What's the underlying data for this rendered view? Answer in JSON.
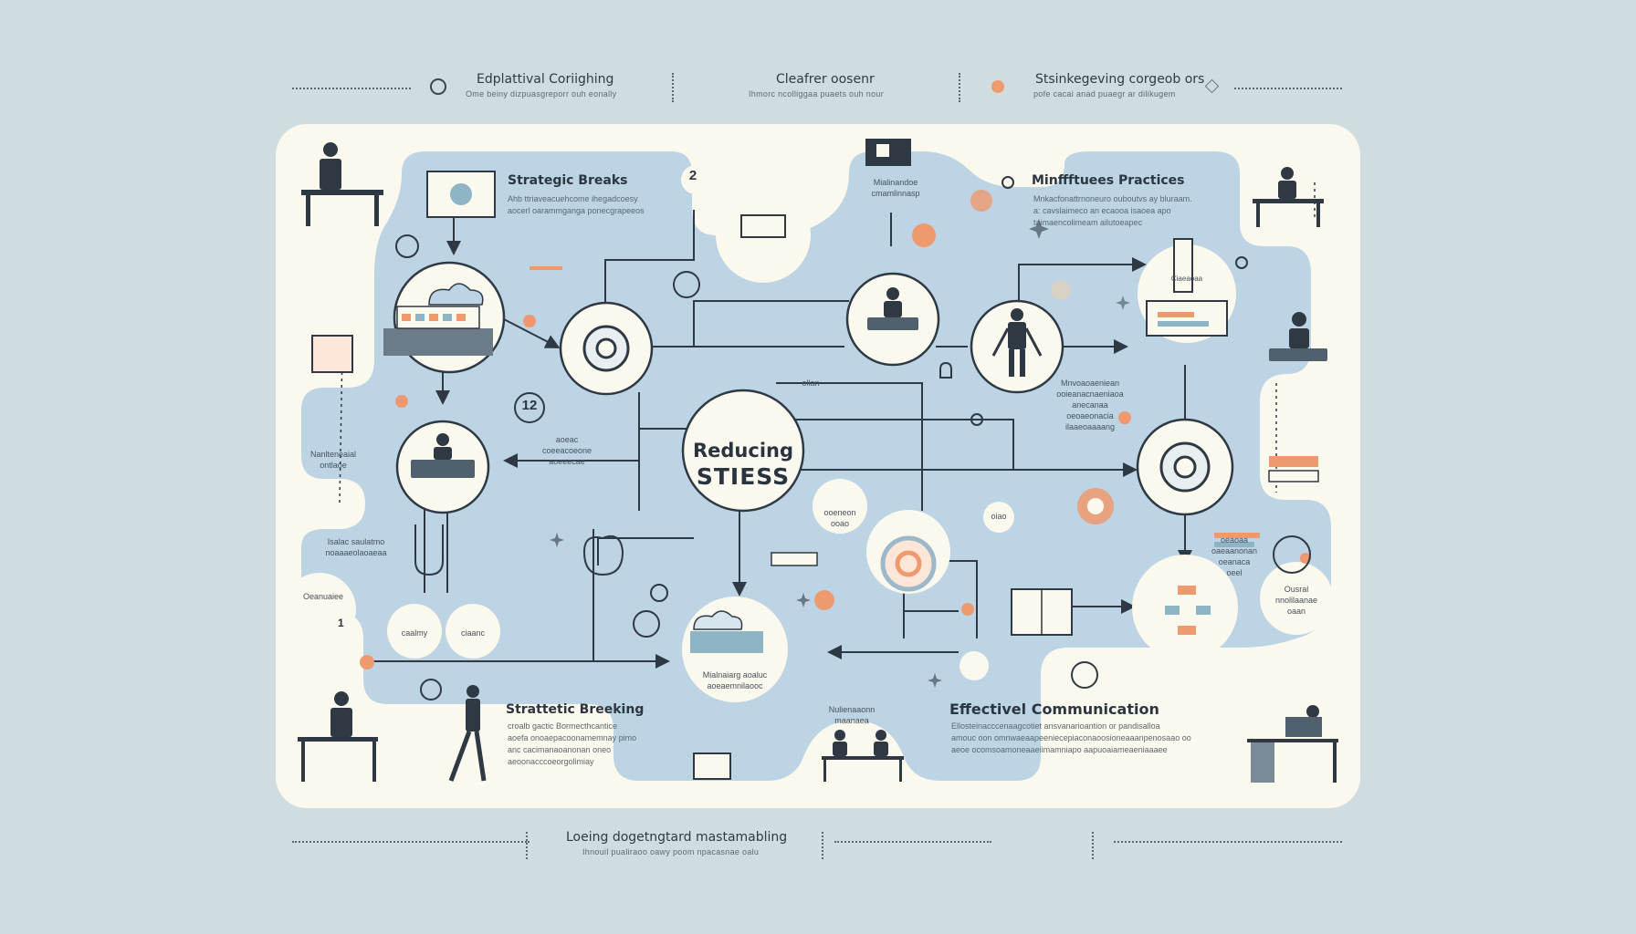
{
  "header": {
    "items": [
      {
        "title": "Edplattival Coriighing",
        "subtitle": "Ome beiny dizpuasgreporr ouh eonally"
      },
      {
        "title": "Cleafrer oosenr",
        "subtitle": "Ihmorc ncolliggaa puaets ouh nour"
      },
      {
        "title": "Stsinkegeving corgeob ors",
        "subtitle": "pofe cacai anad puaegr ar dilikugem"
      }
    ]
  },
  "center": {
    "line1": "Reducing",
    "line2": "STIESS"
  },
  "sections": {
    "strategic_breaks": {
      "title": "Strategic Breaks",
      "desc1": "Ahb ttriaveacuehcome ihegadcoesy",
      "desc2": "aocerl oarammganga ponecgrapeeos"
    },
    "mindfulness": {
      "title": "Minffftuees Practices",
      "desc1": "Mnkacfonattrnoneuro ouboutvs ay bluraam.",
      "desc2": "a: cavslaimeco an ecaooa isaoea apo",
      "desc3": "taimaencolimeam ailutoeapec"
    },
    "strategic_breaking": {
      "title": "Strattetic Breeking",
      "desc1": "croalb gactic Bormecthcantice",
      "desc2": "aoefa onoaepacoonamemnay pimo",
      "desc3": "anc cacimanaoanonan oneo",
      "desc4": "aeoonacccoeorgolimiay"
    },
    "communication": {
      "title": "Effectivel Communication",
      "desc1": "Ellosteinacccenaagcotiet ansvanarioantion or pandisalloa",
      "desc2": "amouc oon omnwaeaapeeniecepiaconaoosioneaaanpenosaao oo",
      "desc3": "aeoe ocomsoamoneaaeiimamniapo aapuoaiameaeniaaaee"
    }
  },
  "labels": {
    "badge_2": "2",
    "badge_12": "12",
    "badge_1": "1",
    "top_center": [
      "Mialinandoe",
      "cmamlinnasp"
    ],
    "left_mid": [
      "Nanlteneaial",
      "ontlaoe"
    ],
    "left_low": [
      "Isalac saulatmo",
      "noaaaeolaoaeaa"
    ],
    "pill_left": "Oeanuaiee",
    "pill_a": "caalmy",
    "pill_b": "ciaanc",
    "center_left": [
      "aoeac",
      "coeeacoeone",
      "aoeeecae"
    ],
    "center_bottom": [
      "Mialnaiarg aoaluc",
      "aoeaemnilaooc"
    ],
    "cloud_tag": "ollan",
    "small_mid": [
      "ooeneon",
      "ooao"
    ],
    "right_mid": [
      "Mnvoaoaeniean",
      "ooieanacnaeniaoa",
      "anecanaa",
      "oeoaeonacia",
      "ilaaeoaaaang"
    ],
    "right_low": [
      "oeaoaa",
      "oaeaanonan",
      "oeanaca",
      "oeel"
    ],
    "far_right": [
      "Ousral",
      "nnolilaanae",
      "oaan"
    ],
    "bottom_center": [
      "Nulienaaonn",
      "maanaea"
    ],
    "tiny_round": "oiao",
    "tag_top_right": "Ciaeaoaa"
  },
  "footer": {
    "title": "Loeing dogetngtard mastamabling",
    "subtitle": "Ihnouil pualiraoo oawy poom npacasnae oalu"
  },
  "colors": {
    "bg": "#cfdde0",
    "panel": "#fbf8ee",
    "blob": "#bcd4e4",
    "accent": "#ee9a6e",
    "ink": "#2b3540"
  }
}
